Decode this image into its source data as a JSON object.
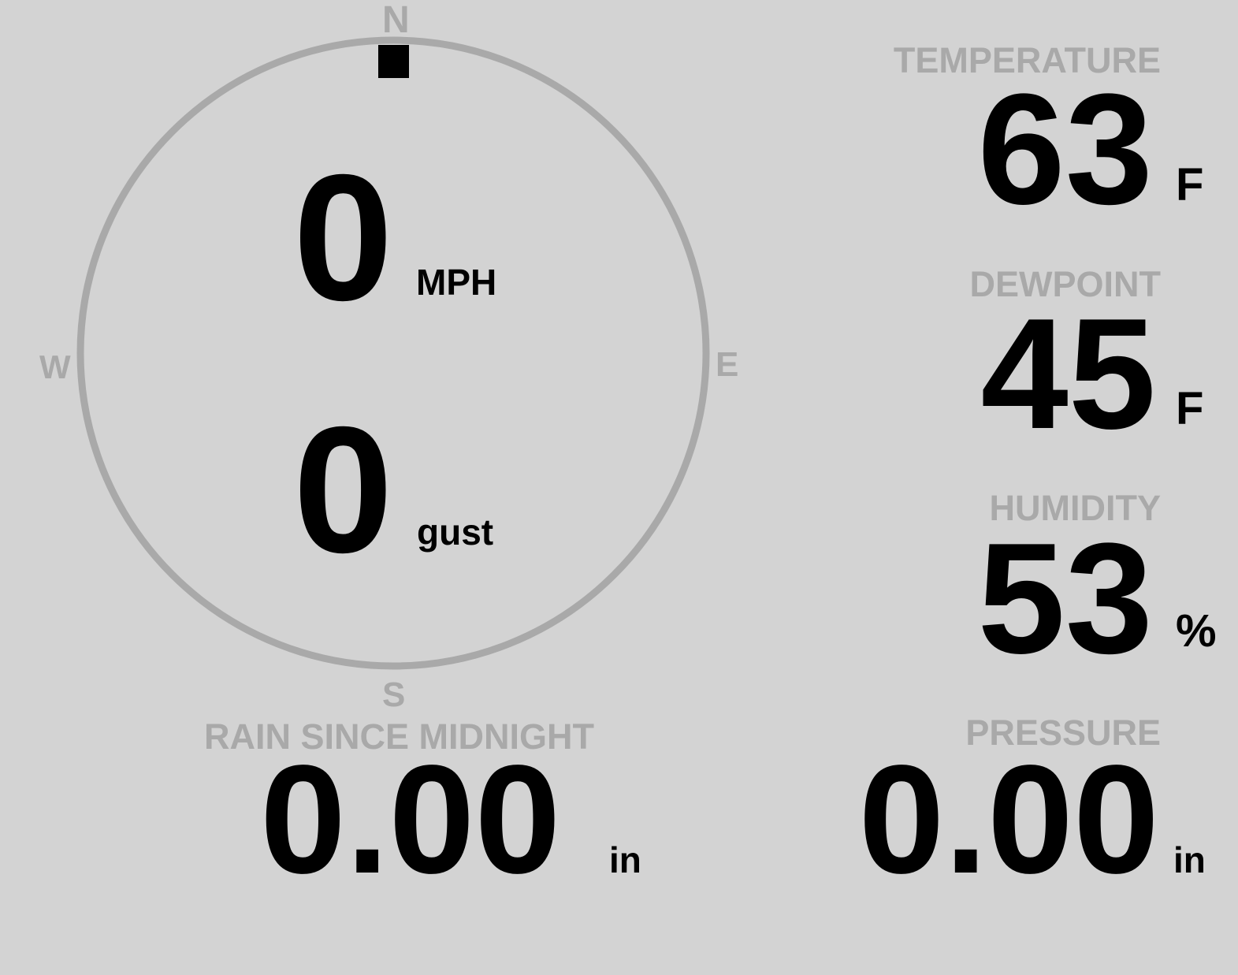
{
  "colors": {
    "background": "#d3d3d3",
    "label": "#a9a9a9",
    "value": "#000000",
    "dial": "#a9a9a9"
  },
  "compass": {
    "n": "N",
    "e": "E",
    "s": "S",
    "w": "W",
    "direction_deg": 0
  },
  "wind": {
    "speed": "0",
    "speed_unit": "MPH",
    "gust": "0",
    "gust_unit": "gust"
  },
  "temperature": {
    "label": "TEMPERATURE",
    "value": "63",
    "unit": "F"
  },
  "dewpoint": {
    "label": "DEWPOINT",
    "value": "45",
    "unit": "F"
  },
  "humidity": {
    "label": "HUMIDITY",
    "value": "53",
    "unit": "%"
  },
  "rain": {
    "label": "RAIN SINCE MIDNIGHT",
    "value": "0.00",
    "unit": "in"
  },
  "pressure": {
    "label": "PRESSURE",
    "value": "0.00",
    "unit": "in"
  }
}
